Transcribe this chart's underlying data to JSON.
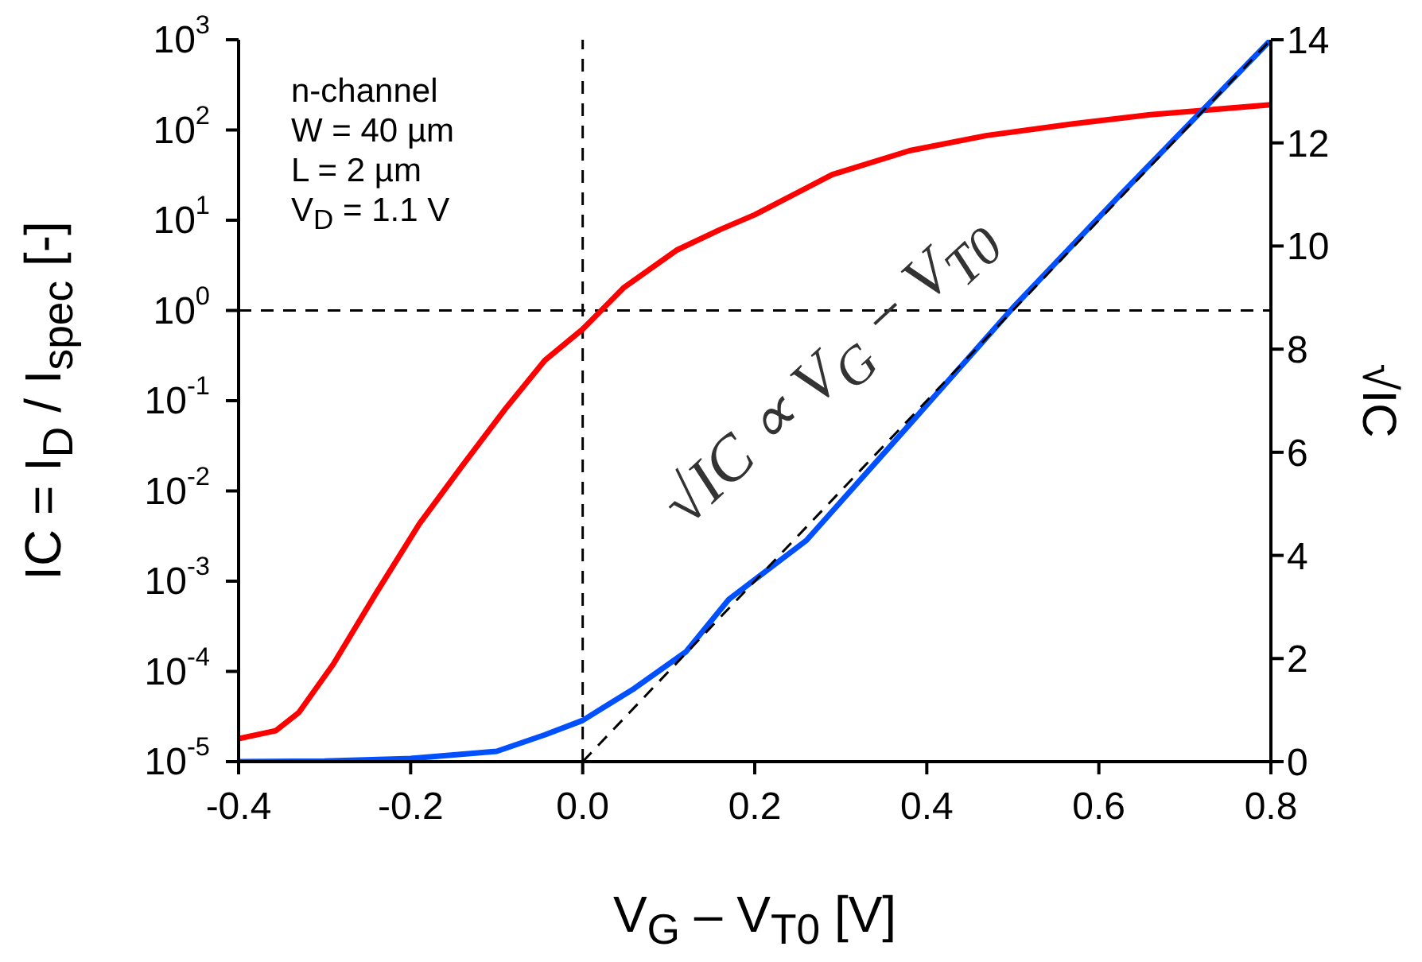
{
  "chart_data": {
    "type": "line",
    "xlabel": "V$_{G}$ – V$_{T0}$ [V]",
    "ylabel": "IC = I$_{D}$ / I$_{spec}$ [-]",
    "y2label": "√IC",
    "log": "y",
    "marker": "none",
    "line_style": "solid",
    "xlim": [
      -0.4,
      0.8
    ],
    "xticks": [
      -0.4,
      -0.2,
      {
        "value": 0,
        "label": "0.0"
      },
      0.2,
      0.4,
      0.6,
      0.8
    ],
    "ylim": [
      1e-05,
      1000
    ],
    "yticks": [
      {
        "value": 1e-05,
        "label": "10$^{-5}$"
      },
      {
        "value": 0.0001,
        "label": "10$^{-4}$"
      },
      {
        "value": 0.001,
        "label": "10$^{-3}$"
      },
      {
        "value": 0.01,
        "label": "10$^{-2}$"
      },
      {
        "value": 0.1,
        "label": "10$^{-1}$"
      },
      {
        "value": 1,
        "label": "10$^{0}$"
      },
      {
        "value": 10,
        "label": "10$^{1}$"
      },
      {
        "value": 100,
        "label": "10$^{2}$"
      },
      {
        "value": 1000,
        "label": "10$^{3}$"
      }
    ],
    "y2lim": [
      0,
      14
    ],
    "y2ticks": [
      0,
      2,
      4,
      6,
      8,
      10,
      12,
      14
    ],
    "series": [
      {
        "color": "#ff0000",
        "x": [
          -0.4,
          -0.357,
          -0.33,
          -0.29,
          -0.24,
          -0.19,
          -0.14,
          -0.09,
          -0.044,
          0,
          0.048,
          0.11,
          0.16,
          0.2,
          0.29,
          0.38,
          0.47,
          0.57,
          0.66,
          0.8
        ],
        "values": [
          1.8e-05,
          2.2e-05,
          3.5e-05,
          0.00012,
          0.00074,
          0.0043,
          0.019,
          0.081,
          0.28,
          0.62,
          1.8,
          4.7,
          7.9,
          11.5,
          32,
          59,
          87,
          117,
          148,
          190
        ]
      },
      {
        "color": "#0050ff",
        "axis": "y2",
        "x": [
          -0.4,
          -0.3,
          -0.2,
          -0.1,
          -0.044,
          0,
          0.06,
          0.12,
          0.17,
          0.26,
          0.38,
          0.5,
          0.63,
          0.8
        ],
        "values": [
          0,
          0.01,
          0.06,
          0.2,
          0.52,
          0.8,
          1.42,
          2.13,
          3.15,
          4.29,
          6.54,
          8.8,
          11.08,
          14
        ]
      },
      {
        "color": "#000000",
        "axis": "y2",
        "line_style": "dashed",
        "x": [
          0,
          0.8
        ],
        "values": [
          0,
          14
        ]
      }
    ],
    "ref_lines": [
      {
        "axis": "x",
        "value": 0,
        "color": "#000000",
        "line_style": "dashed"
      },
      {
        "axis": "y",
        "value": 1,
        "color": "#000000",
        "line_style": "dashed"
      }
    ],
    "annotations": [
      "n-channel",
      "W = 40 µm",
      "L = 2 µm",
      "V$_{D}$ = 1.1 V",
      "√IC ∝ V$_{G}$ − V$_{T0}$"
    ]
  }
}
